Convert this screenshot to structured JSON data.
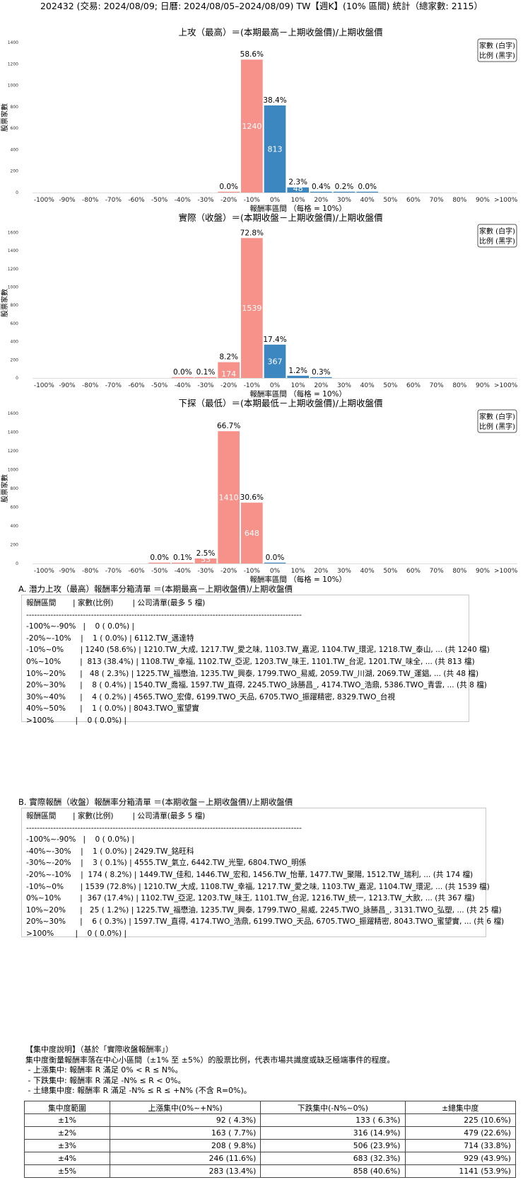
{
  "title": "202432 (交易: 2024/08/09; 日曆: 2024/08/05–2024/08/09) TW【週K】(10% 區間) 統計（總家數: 2115）",
  "legend_lines": [
    "家數 (白字)",
    "比例 (黑字)"
  ],
  "colors": {
    "negative": "#f7928a",
    "positive": "#3d87c0"
  },
  "chart_data": [
    {
      "type": "bar",
      "title": "上攻（最高）＝(本期最高－上期收盤價)/上期收盤價",
      "xlabel": "報酬率區間 （每格 = 10%）",
      "ylabel": "股票家數",
      "categories": [
        "-100%",
        "-90%",
        "-80%",
        "-70%",
        "-60%",
        "-50%",
        "-40%",
        "-30%",
        "-20%",
        "-10%",
        "0%",
        "10%",
        "20%",
        "30%",
        "40%",
        "50%",
        "60%",
        "70%",
        "80%",
        "90%",
        ">100%"
      ],
      "yticks": [
        0,
        200,
        400,
        600,
        800,
        1000,
        1200,
        1400
      ],
      "ylim": [
        0,
        1400
      ],
      "bars": [
        {
          "x": 8.5,
          "value": 1,
          "pct": "0.0%",
          "color": "negative",
          "show_pct": true,
          "show_count": false
        },
        {
          "x": 9.5,
          "value": 1240,
          "pct": "58.6%",
          "color": "negative",
          "show_pct": true,
          "show_count": true
        },
        {
          "x": 10.5,
          "value": 813,
          "pct": "38.4%",
          "color": "positive",
          "show_pct": true,
          "show_count": true
        },
        {
          "x": 11.5,
          "value": 48,
          "pct": "2.3%",
          "color": "positive",
          "show_pct": true,
          "show_count": true
        },
        {
          "x": 12.5,
          "value": 8,
          "pct": "0.4%",
          "color": "positive",
          "show_pct": true,
          "show_count": false
        },
        {
          "x": 13.5,
          "value": 4,
          "pct": "0.2%",
          "color": "positive",
          "show_pct": true,
          "show_count": false
        },
        {
          "x": 14.5,
          "value": 1,
          "pct": "0.0%",
          "color": "positive",
          "show_pct": true,
          "show_count": false
        }
      ]
    },
    {
      "type": "bar",
      "title": "實際（收盤）＝(本期收盤－上期收盤價)/上期收盤價",
      "xlabel": "報酬率區間 （每格 = 10%）",
      "ylabel": "股票家數",
      "categories": [
        "-100%",
        "-90%",
        "-80%",
        "-70%",
        "-60%",
        "-50%",
        "-40%",
        "-30%",
        "-20%",
        "-10%",
        "0%",
        "10%",
        "20%",
        "30%",
        "40%",
        "50%",
        "60%",
        "70%",
        "80%",
        "90%",
        ">100%"
      ],
      "yticks": [
        0,
        200,
        400,
        600,
        800,
        1000,
        1200,
        1400,
        1600
      ],
      "ylim": [
        0,
        1650
      ],
      "bars": [
        {
          "x": 6.5,
          "value": 1,
          "pct": "0.0%",
          "color": "negative",
          "show_pct": true,
          "show_count": false
        },
        {
          "x": 7.5,
          "value": 3,
          "pct": "0.1%",
          "color": "negative",
          "show_pct": true,
          "show_count": false
        },
        {
          "x": 8.5,
          "value": 174,
          "pct": "8.2%",
          "color": "negative",
          "show_pct": true,
          "show_count": true
        },
        {
          "x": 9.5,
          "value": 1539,
          "pct": "72.8%",
          "color": "negative",
          "show_pct": true,
          "show_count": true
        },
        {
          "x": 10.5,
          "value": 367,
          "pct": "17.4%",
          "color": "positive",
          "show_pct": true,
          "show_count": true
        },
        {
          "x": 11.5,
          "value": 25,
          "pct": "1.2%",
          "color": "positive",
          "show_pct": true,
          "show_count": false
        },
        {
          "x": 12.5,
          "value": 6,
          "pct": "0.3%",
          "color": "positive",
          "show_pct": true,
          "show_count": false
        }
      ]
    },
    {
      "type": "bar",
      "title": "下探（最低）＝(本期最低－上期收盤價)/上期收盤價",
      "xlabel": "報酬率區間 （每格 = 10%）",
      "ylabel": "股票家數",
      "categories": [
        "-100%",
        "-90%",
        "-80%",
        "-70%",
        "-60%",
        "-50%",
        "-40%",
        "-30%",
        "-20%",
        "-10%",
        "0%",
        "10%",
        "20%",
        "30%",
        "40%",
        "50%",
        "60%",
        "70%",
        "80%",
        "90%",
        ">100%"
      ],
      "yticks": [
        0,
        200,
        400,
        600,
        800,
        1000,
        1200,
        1400,
        1600
      ],
      "ylim": [
        0,
        1600
      ],
      "bars": [
        {
          "x": 5.5,
          "value": 1,
          "pct": "0.0%",
          "color": "negative",
          "show_pct": true,
          "show_count": false
        },
        {
          "x": 6.5,
          "value": 2,
          "pct": "0.1%",
          "color": "negative",
          "show_pct": true,
          "show_count": false
        },
        {
          "x": 7.5,
          "value": 53,
          "pct": "2.5%",
          "color": "negative",
          "show_pct": true,
          "show_count": true
        },
        {
          "x": 8.5,
          "value": 1410,
          "pct": "66.7%",
          "color": "negative",
          "show_pct": true,
          "show_count": true
        },
        {
          "x": 9.5,
          "value": 648,
          "pct": "30.6%",
          "color": "negative",
          "show_pct": true,
          "show_count": true
        },
        {
          "x": 10.5,
          "value": 1,
          "pct": "0.0%",
          "color": "positive",
          "show_pct": true,
          "show_count": false
        }
      ]
    }
  ],
  "list_a": {
    "title": "A. 潛力上攻（最高）報酬率分箱清單 ＝(本期最高－上期收盤價)/上期收盤價",
    "lines": [
      "報酬區間       | 家數(比例)        | 公司清單(最多 5 檔)",
      "------------------------------------------------------------------------------------------------------",
      "-100%~-90%   |    0 ( 0.0%) |",
      "-20%~-10%    |    1 ( 0.0%) | 6112.TW_邁達特",
      "-10%~0%       | 1240 (58.6%) | 1210.TW_大成, 1217.TW_愛之味, 1103.TW_嘉泥, 1104.TW_環泥, 1218.TW_泰山, ... (共 1240 檔)",
      "0%~10%        |  813 (38.4%) | 1108.TW_幸福, 1102.TW_亞泥, 1203.TW_味王, 1101.TW_台泥, 1201.TW_味全, ... (共 813 檔)",
      "10%~20%      |   48 ( 2.3%) | 1225.TW_福懋油, 1235.TW_興泰, 1799.TWO_易威, 2059.TW_川湖, 2069.TW_運錩, ... (共 48 檔)",
      "20%~30%      |    8 ( 0.4%) | 1540.TW_喬福, 1597.TW_直得, 2245.TWO_詠勝昌_, 4174.TWO_浩鼎, 5386.TWO_青雲, ... (共 8 檔)",
      "30%~40%      |    4 ( 0.2%) | 4565.TWO_宏偉, 6199.TWO_天品, 6705.TWO_振躍精密, 8329.TWO_台視",
      "40%~50%      |    1 ( 0.0%) | 8043.TWO_蜜望實",
      ">100%         |    0 ( 0.0%) |"
    ]
  },
  "list_b": {
    "title": "B. 實際報酬（收盤）報酬率分箱清單 ＝(本期收盤－上期收盤價)/上期收盤價",
    "lines": [
      "報酬區間       | 家數(比例)        | 公司清單(最多 5 檔)",
      "------------------------------------------------------------------------------------------------------",
      "-100%~-90%   |    0 ( 0.0%) |",
      "-40%~-30%    |    1 ( 0.0%) | 2429.TW_銘旺科",
      "-30%~-20%    |    3 ( 0.1%) | 4555.TW_氣立, 6442.TW_光聖, 6804.TWO_明係",
      "-20%~-10%    |  174 ( 8.2%) | 1449.TW_佳和, 1446.TW_宏和, 1456.TW_怡華, 1477.TW_聚陽, 1512.TW_瑞利, ... (共 174 檔)",
      "-10%~0%       | 1539 (72.8%) | 1210.TW_大成, 1108.TW_幸福, 1217.TW_愛之味, 1103.TW_嘉泥, 1104.TW_環泥, ... (共 1539 檔)",
      "0%~10%        |  367 (17.4%) | 1102.TW_亞泥, 1203.TW_味王, 1101.TW_台泥, 1216.TW_統一, 1213.TW_大飲, ... (共 367 檔)",
      "10%~20%      |   25 ( 1.2%) | 1225.TW_福懋油, 1235.TW_興泰, 1799.TWO_易威, 2245.TWO_詠勝昌_, 3131.TWO_弘塑, ... (共 25 檔)",
      "20%~30%      |    6 ( 0.3%) | 1597.TW_直得, 4174.TWO_浩鼎, 6199.TWO_天品, 6705.TWO_振躍精密, 8043.TWO_蜜望實, ... (共 6 檔)",
      ">100%         |    0 ( 0.0%) |"
    ]
  },
  "note": {
    "lines": [
      "【集中度說明】（基於「實際收盤報酬率」）",
      "集中度衡量報酬率落在中心小區間（±1% 至 ±5%）的股票比例，代表市場共識度或缺乏極端事件的程度。",
      " - 上漲集中: 報酬率 R 滿足 0% < R ≤ N%。",
      " - 下跌集中: 報酬率 R 滿足 -N% ≤ R < 0%。",
      " - 土總集中度: 報酬率 R 滿足 -N% ≤ R ≤ +N% (不含 R=0%)。"
    ]
  },
  "table": {
    "headers": [
      "集中度範圍",
      "上漲集中(0%~+N%)",
      "下跌集中(-N%~0%)",
      "±總集中度"
    ],
    "rows": [
      [
        "±1%",
        "92 ( 4.3%)",
        "133 ( 6.3%)",
        "225 (10.6%)"
      ],
      [
        "±2%",
        "163 ( 7.7%)",
        "316 (14.9%)",
        "479 (22.6%)"
      ],
      [
        "±3%",
        "208 ( 9.8%)",
        "506 (23.9%)",
        "714 (33.8%)"
      ],
      [
        "±4%",
        "246 (11.6%)",
        "683 (32.3%)",
        "929 (43.9%)"
      ],
      [
        "±5%",
        "283 (13.4%)",
        "858 (40.6%)",
        "1141 (53.9%)"
      ]
    ]
  }
}
